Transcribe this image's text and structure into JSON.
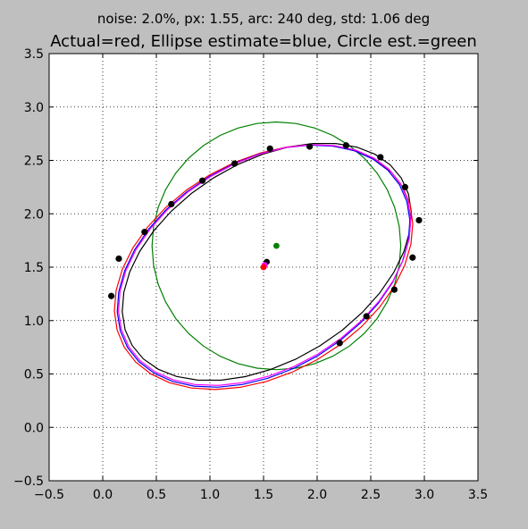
{
  "chart_data": {
    "type": "scatter",
    "subtitle": "noise: 2.0%, px: 1.55, arc: 240 deg, std: 1.06 deg",
    "title": "Actual=red, Ellipse estimate=blue, Circle est.=green",
    "xlabel": "",
    "ylabel": "",
    "xlim": [
      -0.5,
      3.5
    ],
    "ylim": [
      -0.5,
      3.5
    ],
    "x_ticks": [
      "−0.5",
      "0.0",
      "0.5",
      "1.0",
      "1.5",
      "2.0",
      "2.5",
      "3.0",
      "3.5"
    ],
    "y_ticks": [
      "−0.5",
      "0.0",
      "0.5",
      "1.0",
      "1.5",
      "2.0",
      "2.5",
      "3.0",
      "3.5"
    ],
    "grid": true,
    "colors": {
      "actual": "#ff0000",
      "ellipse_estimate": "#0000ff",
      "circle_estimate": "#008000",
      "magenta_fit": "#ff00ff",
      "black_fit": "#000000",
      "points": "#000000"
    },
    "ellipses": {
      "actual": {
        "cx": 1.5,
        "cy": 1.5,
        "a": 1.5,
        "b": 1.0,
        "angle_deg": 30
      },
      "ellipse_estimate": {
        "cx": 1.5,
        "cy": 1.51,
        "a": 1.48,
        "b": 0.98,
        "angle_deg": 31
      },
      "magenta_fit": {
        "cx": 1.51,
        "cy": 1.52,
        "a": 1.48,
        "b": 0.97,
        "angle_deg": 31
      },
      "black_fit": {
        "cx": 1.53,
        "cy": 1.55,
        "a": 1.48,
        "b": 0.93,
        "angle_deg": 32
      },
      "circle_estimate": {
        "cx": 1.62,
        "cy": 1.7,
        "r": 1.16
      }
    },
    "centers": [
      {
        "name": "circle_center",
        "x": 1.62,
        "y": 1.7,
        "color": "#008000"
      },
      {
        "name": "black_center",
        "x": 1.53,
        "y": 1.55,
        "color": "#000000"
      },
      {
        "name": "magenta_center",
        "x": 1.51,
        "y": 1.52,
        "color": "#ff00ff"
      },
      {
        "name": "red_center",
        "x": 1.5,
        "y": 1.5,
        "color": "#ff0000"
      }
    ],
    "points": [
      {
        "x": 0.08,
        "y": 1.23
      },
      {
        "x": 0.15,
        "y": 1.58
      },
      {
        "x": 0.39,
        "y": 1.83
      },
      {
        "x": 0.64,
        "y": 2.09
      },
      {
        "x": 0.93,
        "y": 2.31
      },
      {
        "x": 1.23,
        "y": 2.47
      },
      {
        "x": 1.56,
        "y": 2.61
      },
      {
        "x": 1.93,
        "y": 2.63
      },
      {
        "x": 2.27,
        "y": 2.64
      },
      {
        "x": 2.59,
        "y": 2.53
      },
      {
        "x": 2.82,
        "y": 2.25
      },
      {
        "x": 2.95,
        "y": 1.94
      },
      {
        "x": 2.89,
        "y": 1.59
      },
      {
        "x": 2.72,
        "y": 1.29
      },
      {
        "x": 2.46,
        "y": 1.04
      },
      {
        "x": 2.21,
        "y": 0.79
      }
    ]
  }
}
